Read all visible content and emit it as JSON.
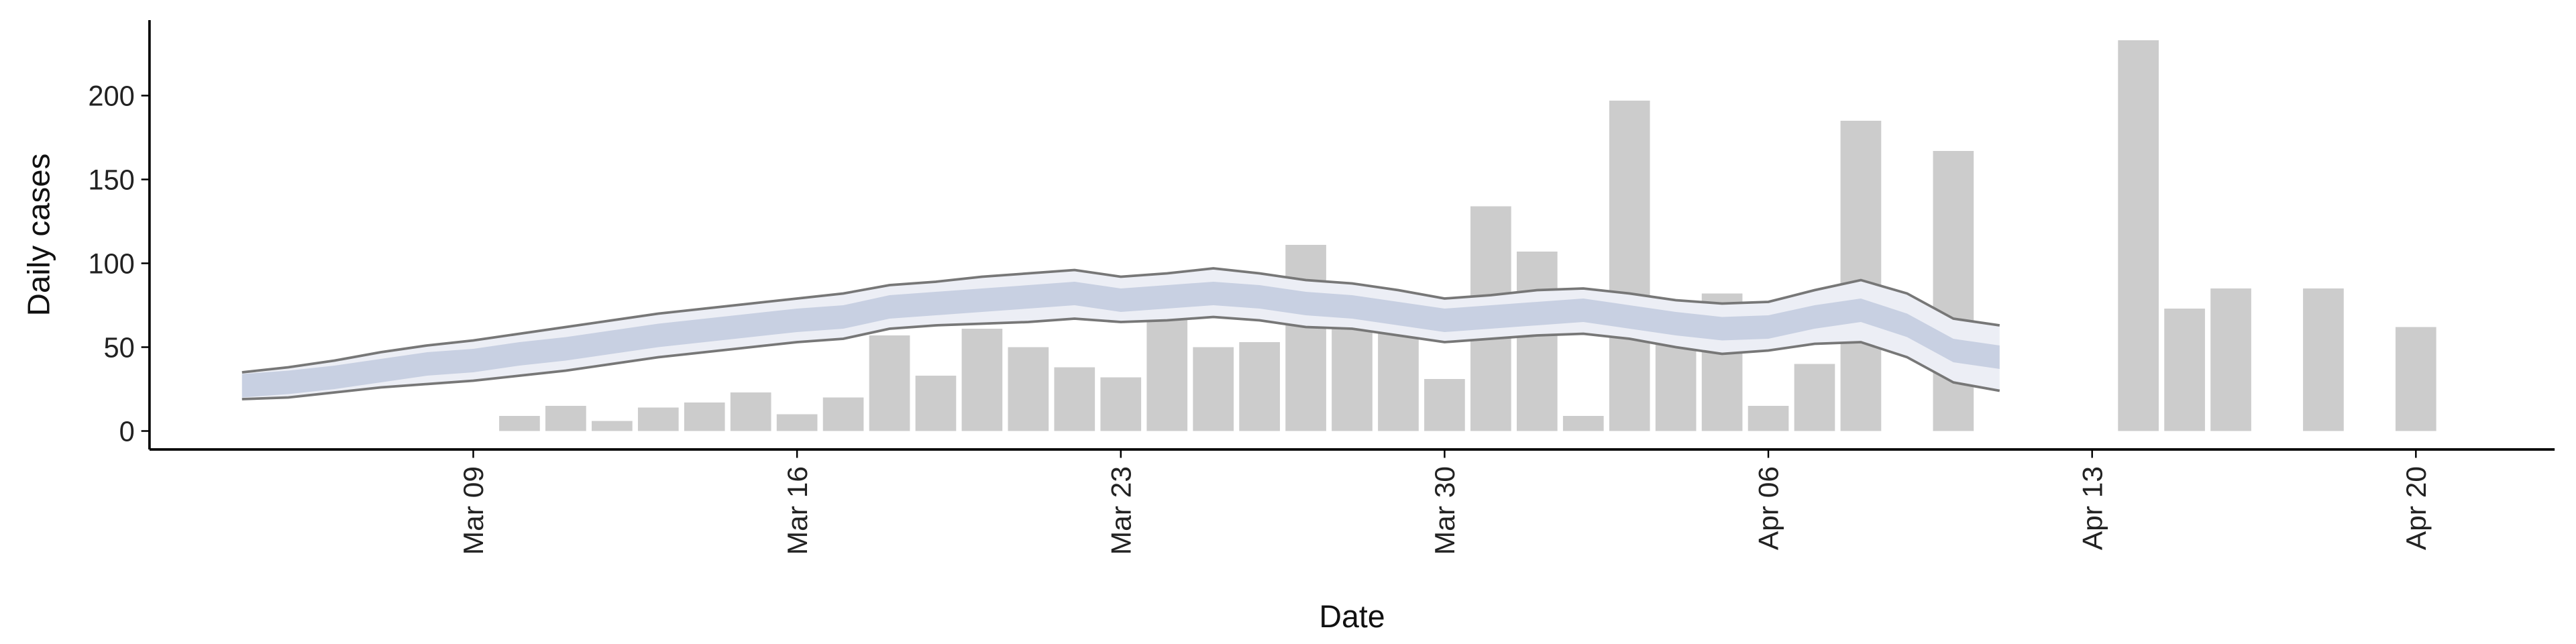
{
  "chart_data": {
    "type": "bar",
    "x_label": "Date",
    "y_label": "Daily cases",
    "xlim": [
      "03-02",
      "04-23"
    ],
    "ylim": [
      -11,
      245
    ],
    "yticks": [
      0,
      50,
      100,
      150,
      200
    ],
    "xticks": [
      {
        "value": "03-09",
        "label": "Mar 09"
      },
      {
        "value": "03-16",
        "label": "Mar 16"
      },
      {
        "value": "03-23",
        "label": "Mar 23"
      },
      {
        "value": "03-30",
        "label": "Mar 30"
      },
      {
        "value": "04-06",
        "label": "Apr 06"
      },
      {
        "value": "04-13",
        "label": "Apr 13"
      },
      {
        "value": "04-20",
        "label": "Apr 20"
      }
    ],
    "bars": {
      "color": "#cccccc",
      "x": [
        "03-10",
        "03-11",
        "03-12",
        "03-13",
        "03-14",
        "03-15",
        "03-16",
        "03-17",
        "03-18",
        "03-19",
        "03-20",
        "03-21",
        "03-22",
        "03-23",
        "03-24",
        "03-25",
        "03-26",
        "03-27",
        "03-28",
        "03-29",
        "03-30",
        "03-31",
        "04-01",
        "04-02",
        "04-03",
        "04-04",
        "04-05",
        "04-06",
        "04-07",
        "04-08",
        "04-10",
        "04-14",
        "04-15",
        "04-16",
        "04-18",
        "04-20"
      ],
      "values": [
        9,
        15,
        6,
        14,
        17,
        23,
        10,
        20,
        57,
        33,
        61,
        50,
        38,
        32,
        81,
        50,
        53,
        111,
        87,
        69,
        31,
        134,
        107,
        9,
        197,
        62,
        82,
        15,
        40,
        185,
        167,
        233,
        73,
        85,
        85,
        62
      ]
    },
    "estimate": {
      "outer_color": "#eceef5",
      "inner_color": "#c8d0e2",
      "line_color": "#777777",
      "x": [
        "03-04",
        "03-05",
        "03-06",
        "03-07",
        "03-08",
        "03-09",
        "03-10",
        "03-11",
        "03-12",
        "03-13",
        "03-14",
        "03-15",
        "03-16",
        "03-17",
        "03-18",
        "03-19",
        "03-20",
        "03-21",
        "03-22",
        "03-23",
        "03-24",
        "03-25",
        "03-26",
        "03-27",
        "03-28",
        "03-29",
        "03-30",
        "03-31",
        "04-01",
        "04-02",
        "04-03",
        "04-04",
        "04-05",
        "04-06",
        "04-07",
        "04-08",
        "04-09",
        "04-10",
        "04-11"
      ],
      "upper90": [
        35,
        38,
        42,
        47,
        51,
        54,
        58,
        62,
        66,
        70,
        73,
        76,
        79,
        82,
        87,
        89,
        92,
        94,
        96,
        92,
        94,
        97,
        94,
        90,
        88,
        84,
        79,
        81,
        84,
        85,
        82,
        78,
        76,
        77,
        84,
        90,
        82,
        67,
        63
      ],
      "lower90": [
        19,
        20,
        23,
        26,
        28,
        30,
        33,
        36,
        40,
        44,
        47,
        50,
        53,
        55,
        61,
        63,
        64,
        65,
        67,
        65,
        66,
        68,
        66,
        62,
        61,
        57,
        53,
        55,
        57,
        58,
        55,
        50,
        46,
        48,
        52,
        53,
        44,
        29,
        24
      ],
      "upper50": [
        34,
        36,
        39,
        43,
        47,
        49,
        53,
        56,
        60,
        64,
        67,
        70,
        73,
        75,
        81,
        83,
        85,
        87,
        89,
        85,
        87,
        89,
        87,
        83,
        81,
        77,
        73,
        75,
        77,
        79,
        75,
        71,
        68,
        69,
        75,
        79,
        70,
        55,
        51
      ],
      "lower50": [
        20,
        22,
        25,
        29,
        33,
        35,
        39,
        42,
        46,
        50,
        53,
        56,
        59,
        61,
        67,
        69,
        71,
        73,
        75,
        71,
        73,
        75,
        73,
        69,
        67,
        63,
        59,
        61,
        63,
        65,
        61,
        57,
        54,
        55,
        61,
        65,
        56,
        41,
        37
      ]
    }
  }
}
